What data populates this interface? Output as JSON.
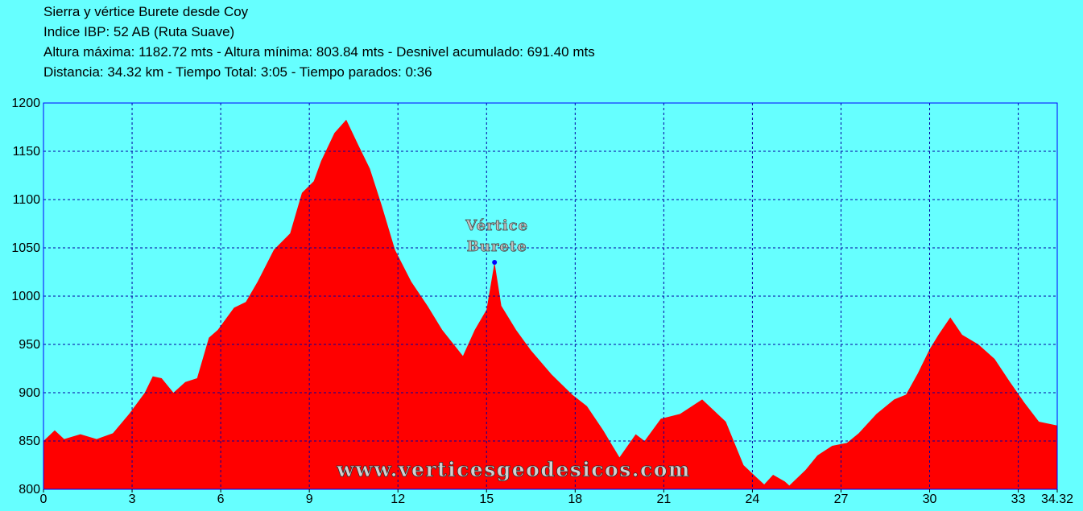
{
  "chart_data": {
    "type": "area",
    "title_lines": [
      "Sierra y vértice Burete desde Coy",
      "Indice IBP: 52 AB (Ruta Suave)",
      "Altura máxima: 1182.72 mts - Altura mínima: 803.84 mts - Desnivel acumulado: 691.40 mts",
      "Distancia: 34.32 km - Tiempo Total: 3:05 - Tiempo parados: 0:36"
    ],
    "x": [
      0,
      0.38,
      0.7,
      1.25,
      1.8,
      2.35,
      2.9,
      3.43,
      3.7,
      4.0,
      4.4,
      4.8,
      5.2,
      5.6,
      5.9,
      6.45,
      6.85,
      7.25,
      7.8,
      8.35,
      8.75,
      9.15,
      9.4,
      9.85,
      10.25,
      10.65,
      11.05,
      11.45,
      11.9,
      12.45,
      13.0,
      13.5,
      14.2,
      14.6,
      15.0,
      15.27,
      15.5,
      16.0,
      16.5,
      17.2,
      17.9,
      18.4,
      18.95,
      19.5,
      20.05,
      20.35,
      20.9,
      21.55,
      22.3,
      23.1,
      23.5,
      23.7,
      24.15,
      24.4,
      24.7,
      25.1,
      25.25,
      25.8,
      26.2,
      26.7,
      27.2,
      27.6,
      28.2,
      28.8,
      29.2,
      29.6,
      30.0,
      30.3,
      30.7,
      31.1,
      31.65,
      32.2,
      32.7,
      33.2,
      33.7,
      34.32
    ],
    "series": [
      {
        "name": "Altura",
        "color": "#ff0000",
        "values": [
          850,
          861,
          852,
          857,
          852,
          858,
          878,
          900,
          917,
          915,
          900,
          911,
          915,
          957,
          965,
          988,
          994,
          1015,
          1048,
          1065,
          1107,
          1119,
          1140,
          1169,
          1182.72,
          1157,
          1132,
          1094,
          1048,
          1015,
          990,
          965,
          938,
          965,
          986,
          1035,
          990,
          965,
          944,
          919,
          898,
          886,
          861,
          833,
          857,
          850,
          873,
          878,
          893,
          870,
          840,
          825,
          812,
          805,
          815,
          808,
          803.84,
          820,
          835,
          845,
          848,
          858,
          878,
          893,
          898,
          920,
          945,
          960,
          978,
          960,
          950,
          935,
          912,
          890,
          870,
          866
        ]
      }
    ],
    "annotation": {
      "lines": [
        "Vértice",
        "Burete"
      ],
      "x": 15.27,
      "y": 1035,
      "color": "#0000ff"
    },
    "watermark": "www.verticesgeodesicos.com",
    "xlim": [
      0,
      34.32
    ],
    "xticks": [
      0,
      3,
      6,
      9,
      12,
      15,
      18,
      21,
      24,
      27,
      30,
      33,
      34.32
    ],
    "ylim": [
      800,
      1200
    ],
    "yticks": [
      800,
      850,
      900,
      950,
      1000,
      1050,
      1100,
      1150,
      1200
    ],
    "grid": true
  }
}
